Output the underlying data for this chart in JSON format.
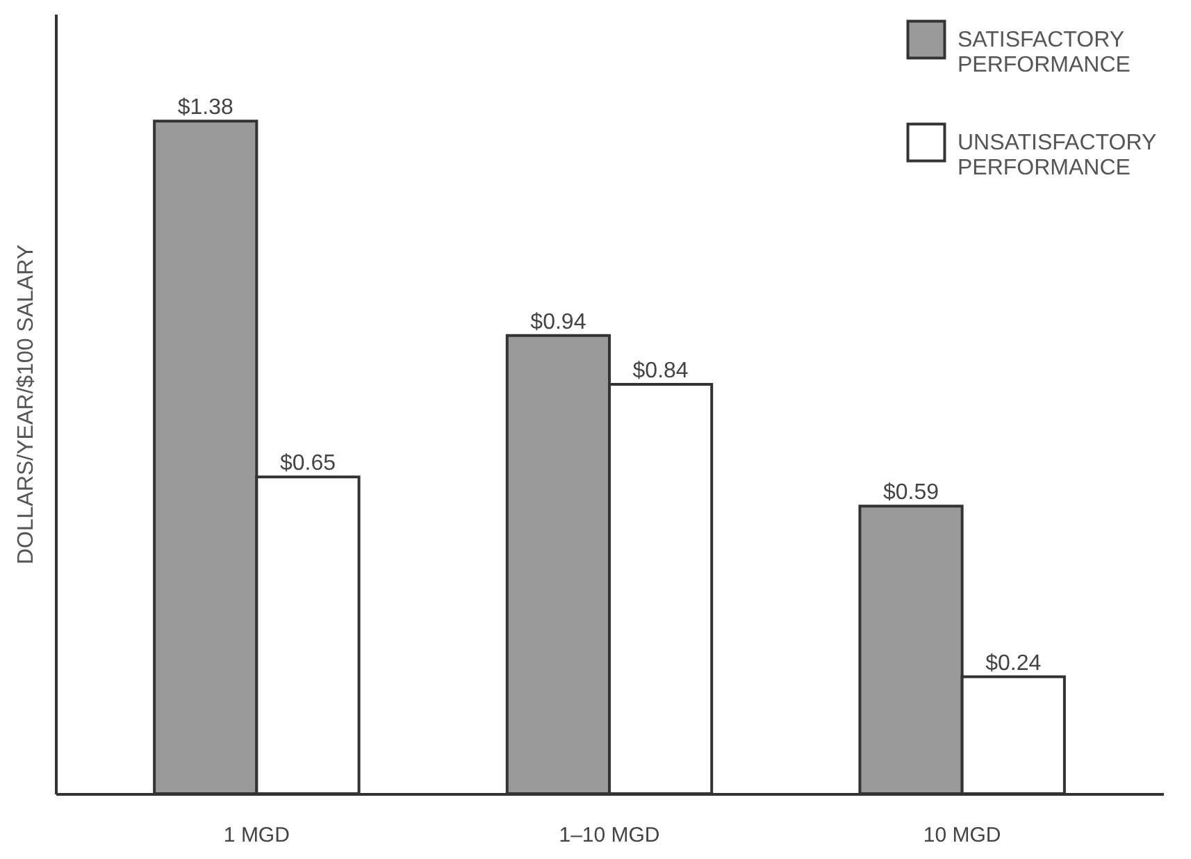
{
  "chart_data": {
    "type": "bar",
    "ylabel": "DOLLARS/YEAR/$100 SALARY",
    "categories": [
      "1 MGD",
      "1–10 MGD",
      "10 MGD"
    ],
    "series": [
      {
        "name": "SATISFACTORY PERFORMANCE",
        "color": "#9a9a9a",
        "values": [
          1.38,
          0.94,
          0.59
        ],
        "value_labels": [
          "$1.38",
          "$0.94",
          "$0.59"
        ]
      },
      {
        "name": "UNSATISFACTORY PERFORMANCE",
        "color": "#ffffff",
        "values": [
          0.65,
          0.84,
          0.24
        ],
        "value_labels": [
          "$0.65",
          "$0.84",
          "$0.24"
        ]
      }
    ],
    "ylim": [
      0,
      1.6
    ],
    "legend": "top right",
    "tick_labels": "x"
  }
}
